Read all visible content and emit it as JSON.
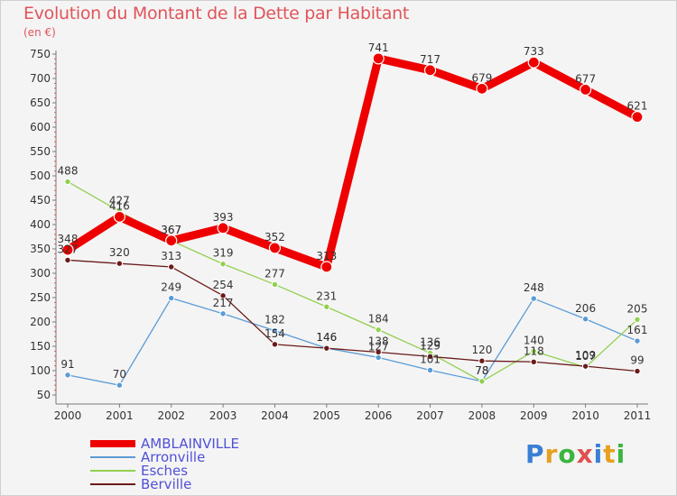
{
  "title": "Evolution du Montant de la Dette par Habitant",
  "unit": "(en €)",
  "logo": "Proxiti",
  "colors": {
    "title": "#e0555a",
    "axis": "#7a7a7a",
    "legend_text": "#5050d8"
  },
  "chart_data": {
    "type": "line",
    "title": "Evolution du Montant de la Dette par Habitant",
    "ylabel": "(en €)",
    "xlabel": "",
    "x": [
      "2000",
      "2001",
      "2002",
      "2003",
      "2004",
      "2005",
      "2006",
      "2007",
      "2008",
      "2009",
      "2010",
      "2011"
    ],
    "ylim": [
      50,
      750
    ],
    "yticks": [
      50,
      100,
      150,
      200,
      250,
      300,
      350,
      400,
      450,
      500,
      550,
      600,
      650,
      700,
      750
    ],
    "grid": false,
    "legend_position": "bottom-left",
    "series": [
      {
        "name": "AMBLAINVILLE",
        "color": "#ee0000",
        "values": [
          348,
          416,
          367,
          393,
          352,
          313,
          741,
          717,
          679,
          733,
          677,
          621
        ]
      },
      {
        "name": "Arronville",
        "color": "#5b9bd5",
        "values": [
          91,
          70,
          249,
          217,
          182,
          146,
          127,
          101,
          78,
          248,
          206,
          161
        ]
      },
      {
        "name": "Esches",
        "color": "#92d050",
        "values": [
          488,
          427,
          367,
          319,
          277,
          231,
          184,
          136,
          78,
          140,
          107,
          205
        ]
      },
      {
        "name": "Berville",
        "color": "#6b1a1a",
        "values": [
          327,
          320,
          313,
          254,
          154,
          146,
          138,
          129,
          120,
          118,
          109,
          99
        ]
      }
    ]
  }
}
